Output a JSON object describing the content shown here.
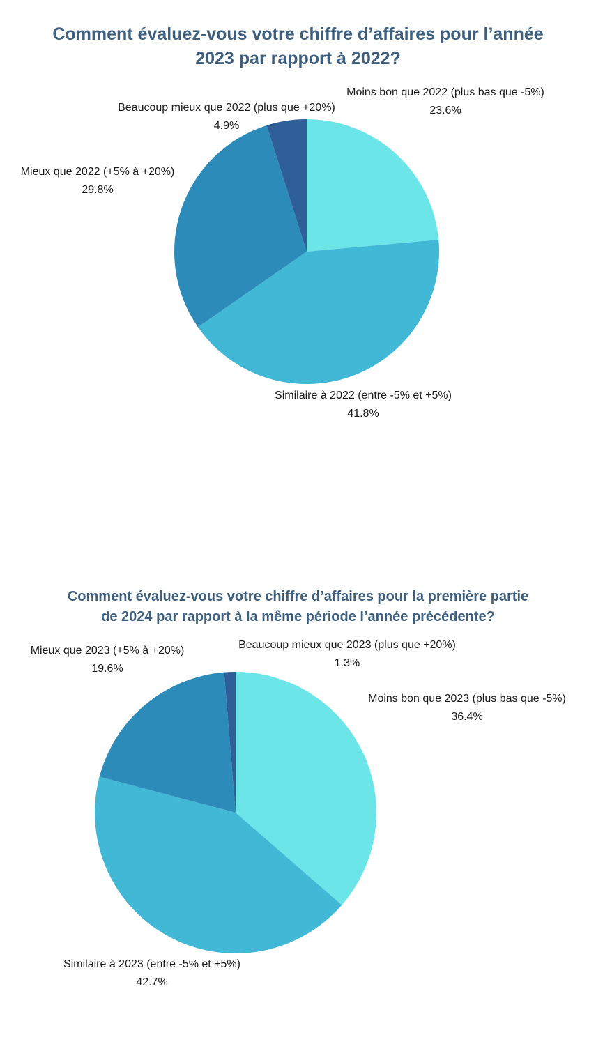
{
  "chart_data": [
    {
      "type": "pie",
      "title_lines": [
        "Comment évaluez-vous votre chiffre d’affaires pour l’année",
        "2023 par rapport à 2022?"
      ],
      "slices": [
        {
          "label": "Moins bon que 2022 (plus bas que -5%)",
          "value": 23.6,
          "value_label": "23.6%",
          "color": "#6ce5e8"
        },
        {
          "label": "Similaire à 2022 (entre -5% et +5%)",
          "value": 41.8,
          "value_label": "41.8%",
          "color": "#41b8d5"
        },
        {
          "label": "Mieux que 2022 (+5% à +20%)",
          "value": 29.8,
          "value_label": "29.8%",
          "color": "#2d8bba"
        },
        {
          "label": "Beaucoup mieux que 2022 (plus que +20%)",
          "value": 4.9,
          "value_label": "4.9%",
          "color": "#2f5f98"
        }
      ],
      "start": "top",
      "direction": "clockwise"
    },
    {
      "type": "pie",
      "title_lines": [
        "Comment évaluez-vous votre chiffre d’affaires pour la première partie",
        "de 2024 par rapport à la même période l’année précédente?"
      ],
      "slices": [
        {
          "label": "Moins bon que 2023 (plus bas que -5%)",
          "value": 36.4,
          "value_label": "36.4%",
          "color": "#6ce5e8"
        },
        {
          "label": "Similaire à 2023 (entre -5% et +5%)",
          "value": 42.7,
          "value_label": "42.7%",
          "color": "#41b8d5"
        },
        {
          "label": "Mieux que 2023 (+5% à +20%)",
          "value": 19.6,
          "value_label": "19.6%",
          "color": "#2d8bba"
        },
        {
          "label": "Beaucoup mieux que 2023 (plus que  +20%)",
          "value": 1.3,
          "value_label": "1.3%",
          "color": "#2f5f98"
        }
      ],
      "start": "top",
      "direction": "clockwise"
    }
  ]
}
